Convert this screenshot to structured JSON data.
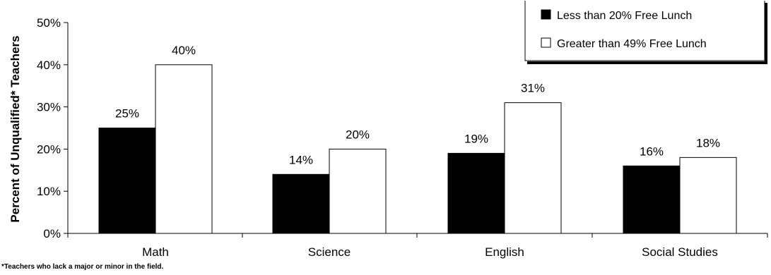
{
  "chart_data": {
    "type": "bar",
    "categories": [
      "Math",
      "Science",
      "English",
      "Social Studies"
    ],
    "series": [
      {
        "name": "Less than 20% Free Lunch",
        "values": [
          25,
          14,
          19,
          16
        ],
        "labels": [
          "25%",
          "14%",
          "19%",
          "16%"
        ],
        "color": "#000000"
      },
      {
        "name": "Greater than 49% Free Lunch",
        "values": [
          40,
          20,
          31,
          18
        ],
        "labels": [
          "40%",
          "20%",
          "31%",
          "18%"
        ],
        "color": "#ffffff"
      }
    ],
    "ylabel": "Percent of Unqualified* Teachers",
    "ylim": [
      0,
      50
    ],
    "yticks": [
      0,
      10,
      20,
      30,
      40,
      50
    ],
    "ytick_labels": [
      "0%",
      "10%",
      "20%",
      "30%",
      "40%",
      "50%"
    ],
    "legend_position": "top-right",
    "grid": false,
    "footnote": "*Teachers who lack a major or minor in the field."
  }
}
